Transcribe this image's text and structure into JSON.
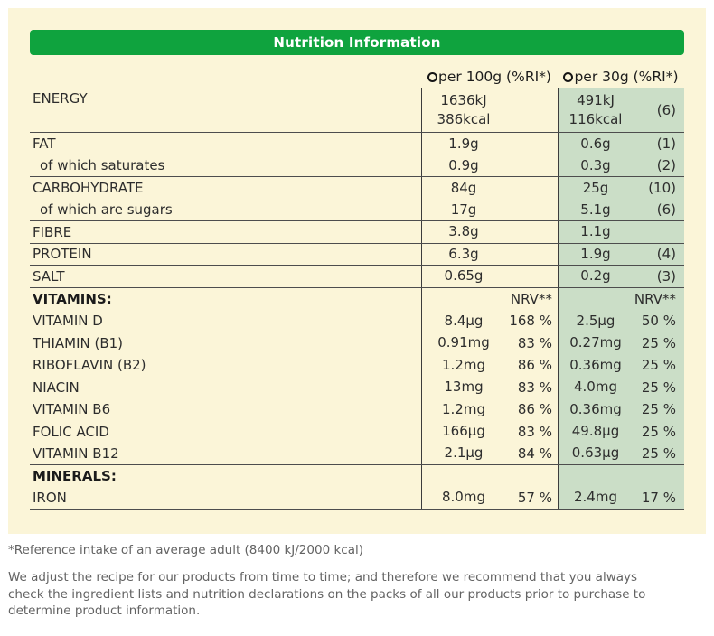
{
  "colors": {
    "title_bar_green": "#0FA33E",
    "panel_cream": "#FBF5D8",
    "per30g_cell_green": "#CBDEC7",
    "separator_line": "#4d4d4d"
  },
  "title_bar": {
    "title": "Nutrition Information"
  },
  "table": {
    "columns": {
      "per100g": "per 100g (%RI*)",
      "per30g": "per 30g (%RI*)"
    },
    "rows": [
      {
        "label": "ENERGY",
        "tall": true,
        "separator": true,
        "per100g_value": [
          "1636kJ",
          "386kcal"
        ],
        "per100g_percent": "",
        "per30g_value": [
          "491kJ",
          "116kcal"
        ],
        "per30g_percent": "(6)"
      },
      {
        "label": "FAT",
        "per100g_value": "1.9g",
        "per30g_value": "0.6g",
        "per30g_percent": "(1)"
      },
      {
        "label": "of which saturates",
        "indent": true,
        "separator": true,
        "per100g_value": "0.9g",
        "per30g_value": "0.3g",
        "per30g_percent": "(2)"
      },
      {
        "label": "CARBOHYDRATE",
        "per100g_value": "84g",
        "per30g_value": "25g",
        "per30g_percent": "(10)"
      },
      {
        "label": "of which are sugars",
        "indent": true,
        "separator": true,
        "per100g_value": "17g",
        "per30g_value": "5.1g",
        "per30g_percent": "(6)"
      },
      {
        "label": "FIBRE",
        "separator": true,
        "per100g_value": "3.8g",
        "per30g_value": "1.1g"
      },
      {
        "label": "PROTEIN",
        "separator": true,
        "per100g_value": "6.3g",
        "per30g_value": "1.9g",
        "per30g_percent": "(4)"
      },
      {
        "label": "SALT",
        "separator": true,
        "per100g_value": "0.65g",
        "per30g_value": "0.2g",
        "per30g_percent": "(3)"
      },
      {
        "label": "VITAMINS:",
        "bold": true,
        "per100g_percent": "NRV**",
        "per30g_percent": "NRV**"
      },
      {
        "label": "VITAMIN D",
        "per100g_value": "8.4µg",
        "per100g_percent": "168 %",
        "per30g_value": "2.5µg",
        "per30g_percent": "50 %"
      },
      {
        "label": "THIAMIN (B1)",
        "per100g_value": "0.91mg",
        "per100g_percent": "83 %",
        "per30g_value": "0.27mg",
        "per30g_percent": "25 %"
      },
      {
        "label": "RIBOFLAVIN (B2)",
        "per100g_value": "1.2mg",
        "per100g_percent": "86 %",
        "per30g_value": "0.36mg",
        "per30g_percent": "25 %"
      },
      {
        "label": "NIACIN",
        "per100g_value": "13mg",
        "per100g_percent": "83 %",
        "per30g_value": "4.0mg",
        "per30g_percent": "25 %"
      },
      {
        "label": "VITAMIN B6",
        "per100g_value": "1.2mg",
        "per100g_percent": "86 %",
        "per30g_value": "0.36mg",
        "per30g_percent": "25 %"
      },
      {
        "label": "FOLIC ACID",
        "per100g_value": "166µg",
        "per100g_percent": "83 %",
        "per30g_value": "49.8µg",
        "per30g_percent": "25 %"
      },
      {
        "label": "VITAMIN B12",
        "separator": true,
        "per100g_value": "2.1µg",
        "per100g_percent": "84 %",
        "per30g_value": "0.63µg",
        "per30g_percent": "25 %"
      },
      {
        "label": "MINERALS:",
        "bold": true
      },
      {
        "label": "IRON",
        "separator": true,
        "per100g_value": "8.0mg",
        "per100g_percent": "57 %",
        "per30g_value": "2.4mg",
        "per30g_percent": "17 %"
      }
    ]
  },
  "footnotes": {
    "reference": "*Reference intake of an average adult (8400 kJ/2000 kcal)",
    "disclaimer": "We adjust the recipe for our products from time to time; and therefore we recommend that you always check the ingredient lists and nutrition declarations on the packs of all our products prior to purchase to determine product information."
  }
}
